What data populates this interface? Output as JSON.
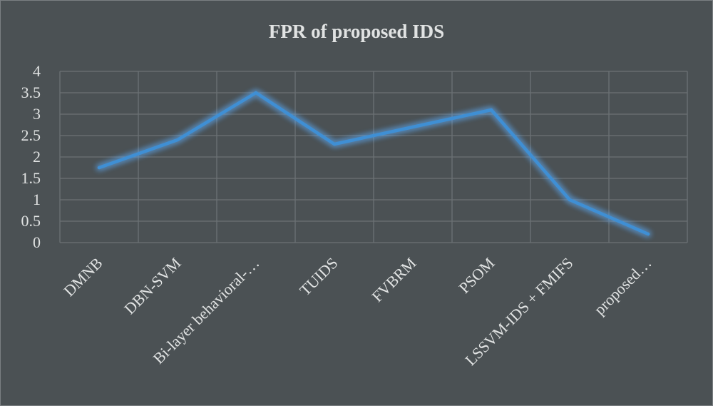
{
  "chart_data": {
    "type": "line",
    "title": "FPR of proposed IDS",
    "xlabel": "",
    "ylabel": "",
    "categories": [
      "DMNB",
      "DBN-SVM",
      "Bi-layer behavioral-…",
      "TUIDS",
      "FVBRM",
      "PSOM",
      "LSSVM-IDS + FMIFS",
      "proposed…"
    ],
    "series": [
      {
        "values": [
          1.75,
          2.4,
          3.5,
          2.3,
          2.7,
          3.1,
          1.0,
          0.2
        ]
      }
    ],
    "ylim": [
      0,
      4
    ],
    "yticks": [
      "0",
      "0.5",
      "1",
      "1.5",
      "2",
      "2.5",
      "3",
      "3.5",
      "4"
    ],
    "grid": true,
    "legend": "none",
    "colors": {
      "background": "#4b5154",
      "line": "#3f8fd4",
      "glow": "#5fb0ff",
      "text": "#e1e3e3",
      "grid": "#6c7275"
    }
  }
}
